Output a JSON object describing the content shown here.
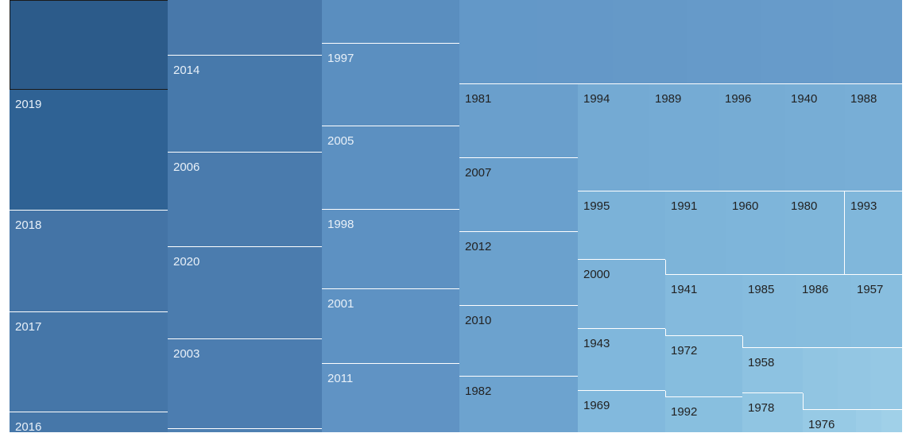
{
  "chart_data": {
    "type": "treemap",
    "title": "",
    "colors": {
      "darkest": "#2b5a8b",
      "dark": "#4775a8",
      "mid": "#5d91c0",
      "light": "#86bddd",
      "lightest": "#a9d0e6",
      "label_light": "#e8f0f8",
      "label_dark": "#222222",
      "selected_border": "#1a1a1a"
    },
    "items": [
      {
        "label": "",
        "value": 100,
        "color": "#2c5b8a",
        "text_color": "#e8f0f8",
        "selected": true
      },
      {
        "label": "2019",
        "value": 100,
        "color": "#2f6294",
        "text_color": "#e8f0f8"
      },
      {
        "label": "2018",
        "value": 100,
        "color": "#4474a6",
        "text_color": "#e8f0f8"
      },
      {
        "label": "2017",
        "value": 100,
        "color": "#4576a8",
        "text_color": "#e8f0f8"
      },
      {
        "label": "2016",
        "value": 100,
        "color": "#4677a9",
        "text_color": "#e8f0f8"
      },
      {
        "label": "",
        "value": 100,
        "color": "#4878aa",
        "text_color": "#e8f0f8"
      },
      {
        "label": "2014",
        "value": 100,
        "color": "#4779ab",
        "text_color": "#e8f0f8"
      },
      {
        "label": "2006",
        "value": 100,
        "color": "#4a7bad",
        "text_color": "#e8f0f8"
      },
      {
        "label": "2020",
        "value": 100,
        "color": "#4b7cae",
        "text_color": "#e8f0f8"
      },
      {
        "label": "2003",
        "value": 100,
        "color": "#4c7db0",
        "text_color": "#e8f0f8"
      },
      {
        "label": "",
        "value": 100,
        "color": "#4d7fb1",
        "text_color": "#e8f0f8"
      },
      {
        "label": "",
        "value": 100,
        "color": "#5a8ebf",
        "text_color": "#e8f0f8"
      },
      {
        "label": "1997",
        "value": 100,
        "color": "#5b8fc0",
        "text_color": "#e8f0f8"
      },
      {
        "label": "2005",
        "value": 100,
        "color": "#5c90c1",
        "text_color": "#e8f0f8"
      },
      {
        "label": "1998",
        "value": 100,
        "color": "#5d91c2",
        "text_color": "#e8f0f8"
      },
      {
        "label": "2001",
        "value": 100,
        "color": "#5e92c3",
        "text_color": "#e8f0f8"
      },
      {
        "label": "2011",
        "value": 100,
        "color": "#6093c4",
        "text_color": "#e8f0f8"
      },
      {
        "label": "",
        "value": 100,
        "color": "#6398c8",
        "text_color": "#222222"
      },
      {
        "label": "",
        "value": 100,
        "color": "#6498c8",
        "text_color": "#222222"
      },
      {
        "label": "",
        "value": 100,
        "color": "#6599c8",
        "text_color": "#222222"
      },
      {
        "label": "",
        "value": 100,
        "color": "#669ac9",
        "text_color": "#222222"
      },
      {
        "label": "",
        "value": 100,
        "color": "#679bca",
        "text_color": "#222222"
      },
      {
        "label": "",
        "value": 100,
        "color": "#689cca",
        "text_color": "#222222"
      },
      {
        "label": "1981",
        "value": 100,
        "color": "#6a9fcc",
        "text_color": "#222222"
      },
      {
        "label": "2007",
        "value": 100,
        "color": "#6aa0cd",
        "text_color": "#222222"
      },
      {
        "label": "2012",
        "value": 100,
        "color": "#6ba1cd",
        "text_color": "#222222"
      },
      {
        "label": "2010",
        "value": 100,
        "color": "#6ca2ce",
        "text_color": "#222222"
      },
      {
        "label": "1982",
        "value": 100,
        "color": "#6da3cf",
        "text_color": "#222222"
      },
      {
        "label": "1994",
        "value": 100,
        "color": "#74aad3",
        "text_color": "#222222"
      },
      {
        "label": "1989",
        "value": 100,
        "color": "#75abd4",
        "text_color": "#222222"
      },
      {
        "label": "1996",
        "value": 100,
        "color": "#76acd4",
        "text_color": "#222222"
      },
      {
        "label": "1940",
        "value": 100,
        "color": "#77add5",
        "text_color": "#222222"
      },
      {
        "label": "1988",
        "value": 100,
        "color": "#78aed6",
        "text_color": "#222222"
      },
      {
        "label": "1995",
        "value": 100,
        "color": "#7bb2d8",
        "text_color": "#222222"
      },
      {
        "label": "1991",
        "value": 100,
        "color": "#7db4d9",
        "text_color": "#222222"
      },
      {
        "label": "1960",
        "value": 100,
        "color": "#7eb5da",
        "text_color": "#222222"
      },
      {
        "label": "1980",
        "value": 100,
        "color": "#7fb6da",
        "text_color": "#222222"
      },
      {
        "label": "1993",
        "value": 100,
        "color": "#80b7db",
        "text_color": "#222222"
      },
      {
        "label": "2000",
        "value": 100,
        "color": "#7db3d9",
        "text_color": "#222222"
      },
      {
        "label": "1941",
        "value": 100,
        "color": "#84badd",
        "text_color": "#222222"
      },
      {
        "label": "1985",
        "value": 100,
        "color": "#86bcde",
        "text_color": "#222222"
      },
      {
        "label": "1986",
        "value": 100,
        "color": "#87bdde",
        "text_color": "#222222"
      },
      {
        "label": "1957",
        "value": 100,
        "color": "#88bedf",
        "text_color": "#222222"
      },
      {
        "label": "1943",
        "value": 100,
        "color": "#80b7dc",
        "text_color": "#222222"
      },
      {
        "label": "1972",
        "value": 100,
        "color": "#86bdde",
        "text_color": "#222222"
      },
      {
        "label": "1958",
        "value": 100,
        "color": "#8dc2e1",
        "text_color": "#222222"
      },
      {
        "label": "",
        "value": 100,
        "color": "#91c5e2",
        "text_color": "#222222"
      },
      {
        "label": "",
        "value": 100,
        "color": "#93c6e3",
        "text_color": "#222222"
      },
      {
        "label": "",
        "value": 100,
        "color": "#95c8e4",
        "text_color": "#222222"
      },
      {
        "label": "1969",
        "value": 100,
        "color": "#82b9dd",
        "text_color": "#222222"
      },
      {
        "label": "1992",
        "value": 100,
        "color": "#88bfdf",
        "text_color": "#222222"
      },
      {
        "label": "1978",
        "value": 100,
        "color": "#90c5e2",
        "text_color": "#222222"
      },
      {
        "label": "1976",
        "value": 100,
        "color": "#97cae5",
        "text_color": "#222222"
      },
      {
        "label": "",
        "value": 100,
        "color": "#9ccde7",
        "text_color": "#222222"
      },
      {
        "label": "",
        "value": 100,
        "color": "#a0d0e8",
        "text_color": "#222222"
      }
    ]
  }
}
